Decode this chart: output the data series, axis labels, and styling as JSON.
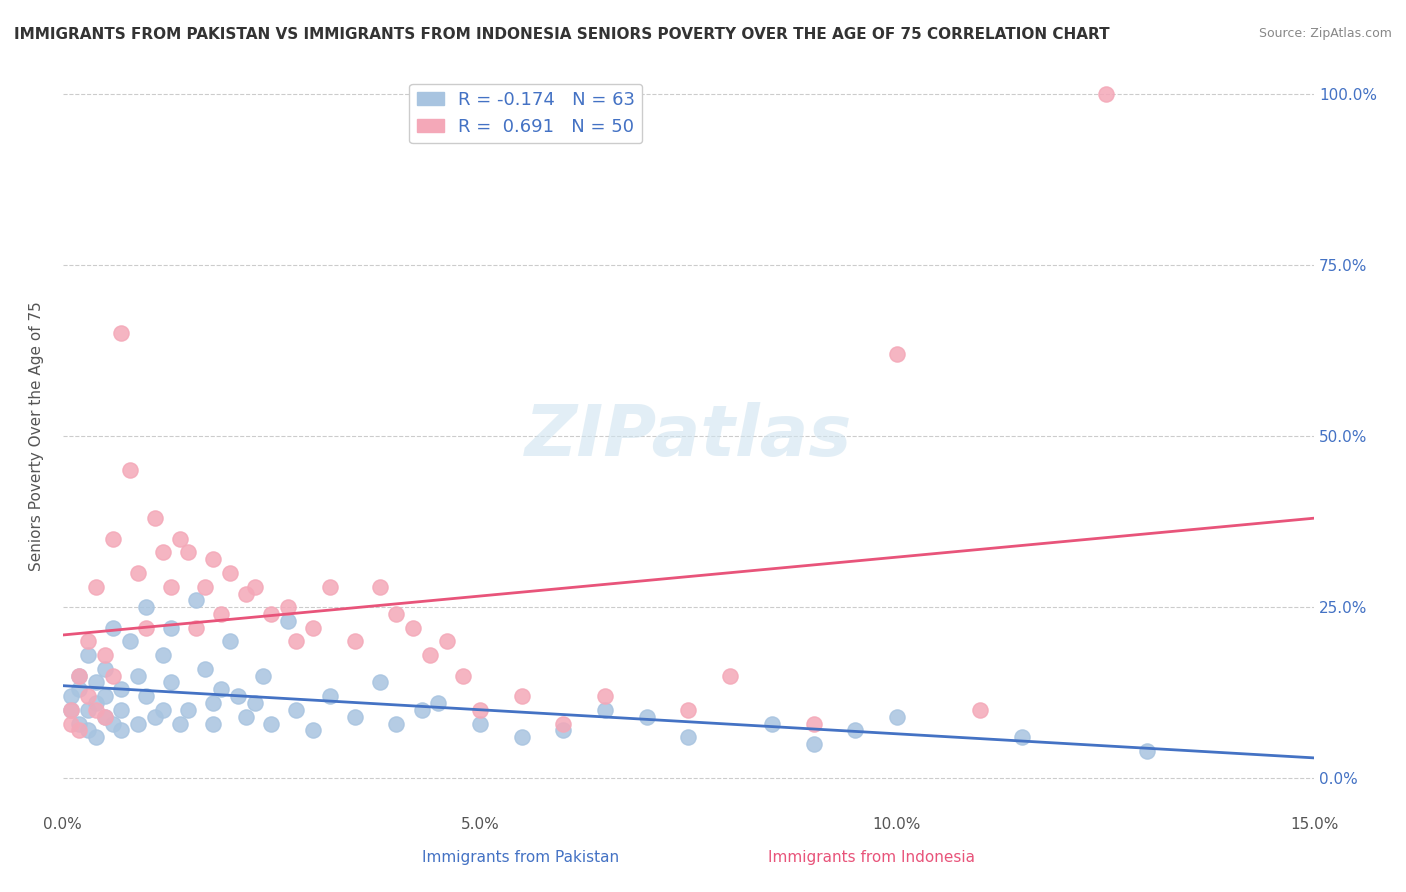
{
  "title": "IMMIGRANTS FROM PAKISTAN VS IMMIGRANTS FROM INDONESIA SENIORS POVERTY OVER THE AGE OF 75 CORRELATION CHART",
  "source": "Source: ZipAtlas.com",
  "xlabel_bottom": "",
  "ylabel": "Seniors Poverty Over the Age of 75",
  "xmin": 0.0,
  "xmax": 0.15,
  "ymin": -0.05,
  "ymax": 1.05,
  "pakistan_R": -0.174,
  "pakistan_N": 63,
  "indonesia_R": 0.691,
  "indonesia_N": 50,
  "pakistan_color": "#a8c4e0",
  "indonesia_color": "#f4a8b8",
  "pakistan_line_color": "#4472c4",
  "indonesia_line_color": "#e8547a",
  "watermark": "ZIPatlas",
  "yticks": [
    0.0,
    0.25,
    0.5,
    0.75,
    1.0
  ],
  "ytick_labels": [
    "0.0%",
    "25.0%",
    "50.0%",
    "75.0%",
    "100.0%"
  ],
  "xticks": [
    0.0,
    0.05,
    0.1,
    0.15
  ],
  "xtick_labels": [
    "0.0%",
    "5.0%",
    "10.0%",
    "15.0%"
  ],
  "pakistan_x": [
    0.001,
    0.001,
    0.002,
    0.002,
    0.002,
    0.003,
    0.003,
    0.003,
    0.004,
    0.004,
    0.004,
    0.005,
    0.005,
    0.005,
    0.006,
    0.006,
    0.007,
    0.007,
    0.007,
    0.008,
    0.009,
    0.009,
    0.01,
    0.01,
    0.011,
    0.012,
    0.012,
    0.013,
    0.013,
    0.014,
    0.015,
    0.016,
    0.017,
    0.018,
    0.018,
    0.019,
    0.02,
    0.021,
    0.022,
    0.023,
    0.024,
    0.025,
    0.027,
    0.028,
    0.03,
    0.032,
    0.035,
    0.038,
    0.04,
    0.043,
    0.045,
    0.05,
    0.055,
    0.06,
    0.065,
    0.07,
    0.075,
    0.085,
    0.09,
    0.095,
    0.1,
    0.115,
    0.13
  ],
  "pakistan_y": [
    0.12,
    0.1,
    0.15,
    0.08,
    0.13,
    0.18,
    0.1,
    0.07,
    0.14,
    0.11,
    0.06,
    0.16,
    0.12,
    0.09,
    0.22,
    0.08,
    0.13,
    0.1,
    0.07,
    0.2,
    0.08,
    0.15,
    0.25,
    0.12,
    0.09,
    0.18,
    0.1,
    0.22,
    0.14,
    0.08,
    0.1,
    0.26,
    0.16,
    0.11,
    0.08,
    0.13,
    0.2,
    0.12,
    0.09,
    0.11,
    0.15,
    0.08,
    0.23,
    0.1,
    0.07,
    0.12,
    0.09,
    0.14,
    0.08,
    0.1,
    0.11,
    0.08,
    0.06,
    0.07,
    0.1,
    0.09,
    0.06,
    0.08,
    0.05,
    0.07,
    0.09,
    0.06,
    0.04
  ],
  "indonesia_x": [
    0.001,
    0.001,
    0.002,
    0.002,
    0.003,
    0.003,
    0.004,
    0.004,
    0.005,
    0.005,
    0.006,
    0.006,
    0.007,
    0.008,
    0.009,
    0.01,
    0.011,
    0.012,
    0.013,
    0.014,
    0.015,
    0.016,
    0.017,
    0.018,
    0.019,
    0.02,
    0.022,
    0.023,
    0.025,
    0.027,
    0.028,
    0.03,
    0.032,
    0.035,
    0.038,
    0.04,
    0.042,
    0.044,
    0.046,
    0.048,
    0.05,
    0.055,
    0.06,
    0.065,
    0.075,
    0.08,
    0.09,
    0.1,
    0.11,
    0.125
  ],
  "indonesia_y": [
    0.1,
    0.08,
    0.15,
    0.07,
    0.2,
    0.12,
    0.28,
    0.1,
    0.18,
    0.09,
    0.35,
    0.15,
    0.65,
    0.45,
    0.3,
    0.22,
    0.38,
    0.33,
    0.28,
    0.35,
    0.33,
    0.22,
    0.28,
    0.32,
    0.24,
    0.3,
    0.27,
    0.28,
    0.24,
    0.25,
    0.2,
    0.22,
    0.28,
    0.2,
    0.28,
    0.24,
    0.22,
    0.18,
    0.2,
    0.15,
    0.1,
    0.12,
    0.08,
    0.12,
    0.1,
    0.15,
    0.08,
    0.62,
    0.1,
    1.0
  ]
}
